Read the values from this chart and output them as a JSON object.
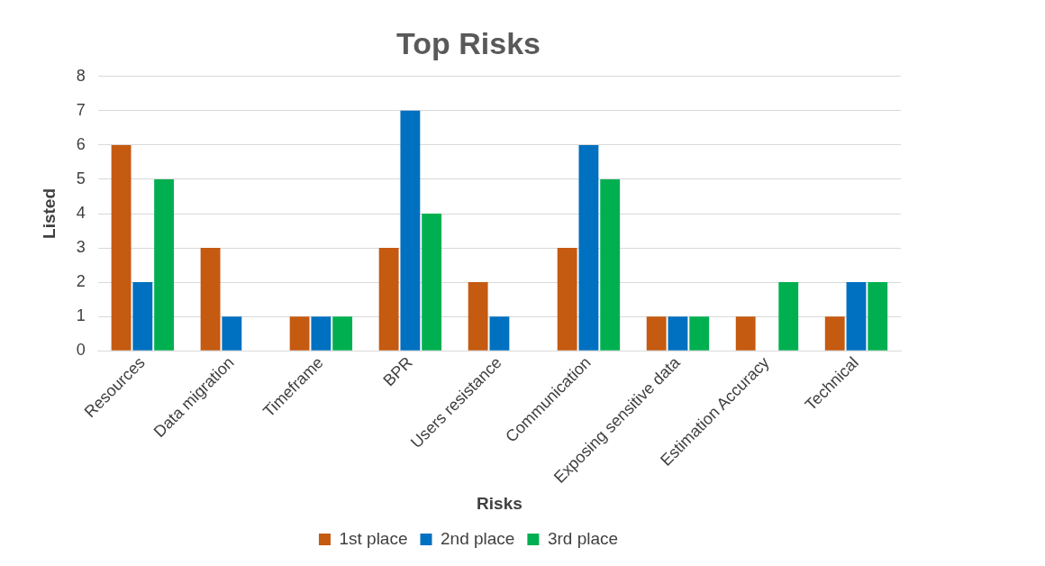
{
  "chart_data": {
    "type": "bar",
    "title": "Top Risks",
    "xlabel": "Risks",
    "ylabel": "Listed",
    "categories": [
      "Resources",
      "Data migration",
      "Timeframe",
      "BPR",
      "Users resistance",
      "Communication",
      "Exposing sensitive data",
      "Estimation Accuracy",
      "Technical"
    ],
    "series": [
      {
        "name": "1st place",
        "color": "#c55a11",
        "values": [
          6,
          3,
          1,
          3,
          2,
          3,
          1,
          1,
          1
        ]
      },
      {
        "name": "2nd place",
        "color": "#0070c0",
        "values": [
          2,
          1,
          1,
          7,
          1,
          6,
          1,
          0,
          2
        ]
      },
      {
        "name": "3rd place",
        "color": "#00b050",
        "values": [
          5,
          0,
          1,
          4,
          0,
          5,
          1,
          2,
          2
        ]
      }
    ],
    "ylim": [
      0,
      8
    ],
    "yticks": [
      0,
      1,
      2,
      3,
      4,
      5,
      6,
      7,
      8
    ],
    "grid": "y",
    "legend": "bottom"
  }
}
